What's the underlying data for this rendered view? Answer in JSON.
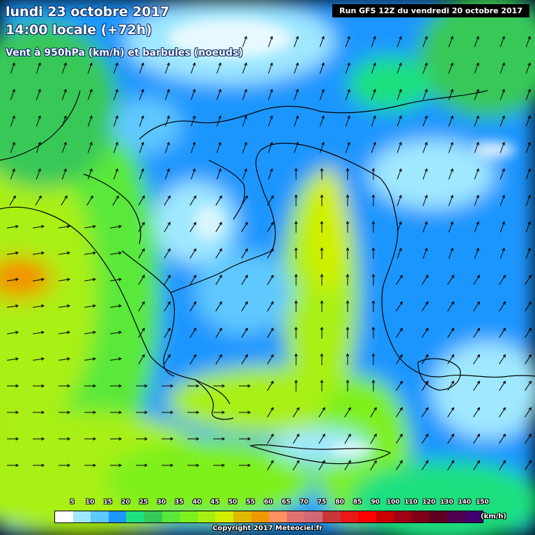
{
  "header": {
    "date_line": "lundi 23 octobre 2017",
    "time_line": "14:00 locale (+72h)",
    "field_line": "Vent à 950hPa (km/h) et barbules (noeuds)"
  },
  "run_label": "Run GFS 12Z du vendredi 20 octobre 2017",
  "legend": {
    "values": [
      "5",
      "10",
      "15",
      "20",
      "25",
      "30",
      "35",
      "40",
      "45",
      "50",
      "55",
      "60",
      "65",
      "70",
      "75",
      "80",
      "85",
      "90",
      "100",
      "110",
      "120",
      "130",
      "140",
      "150"
    ],
    "colors": [
      "#ffffff",
      "#a0e8ff",
      "#5ec8ff",
      "#1e96ff",
      "#1ee080",
      "#38c858",
      "#5ae83a",
      "#7ef01c",
      "#a8f014",
      "#d2f000",
      "#e0b800",
      "#f09800",
      "#ff9060",
      "#e07070",
      "#d06878",
      "#c83838",
      "#e81818",
      "#ff0000",
      "#c80000",
      "#a00010",
      "#800018",
      "#600020",
      "#500050",
      "#400070"
    ],
    "unit": "(km/h)"
  },
  "copyright": "Copyright 2017 Meteociel.fr",
  "colors": {
    "title_text": "#ffffff",
    "title_outline": "#0a2a6a",
    "run_bg": "#000000"
  }
}
